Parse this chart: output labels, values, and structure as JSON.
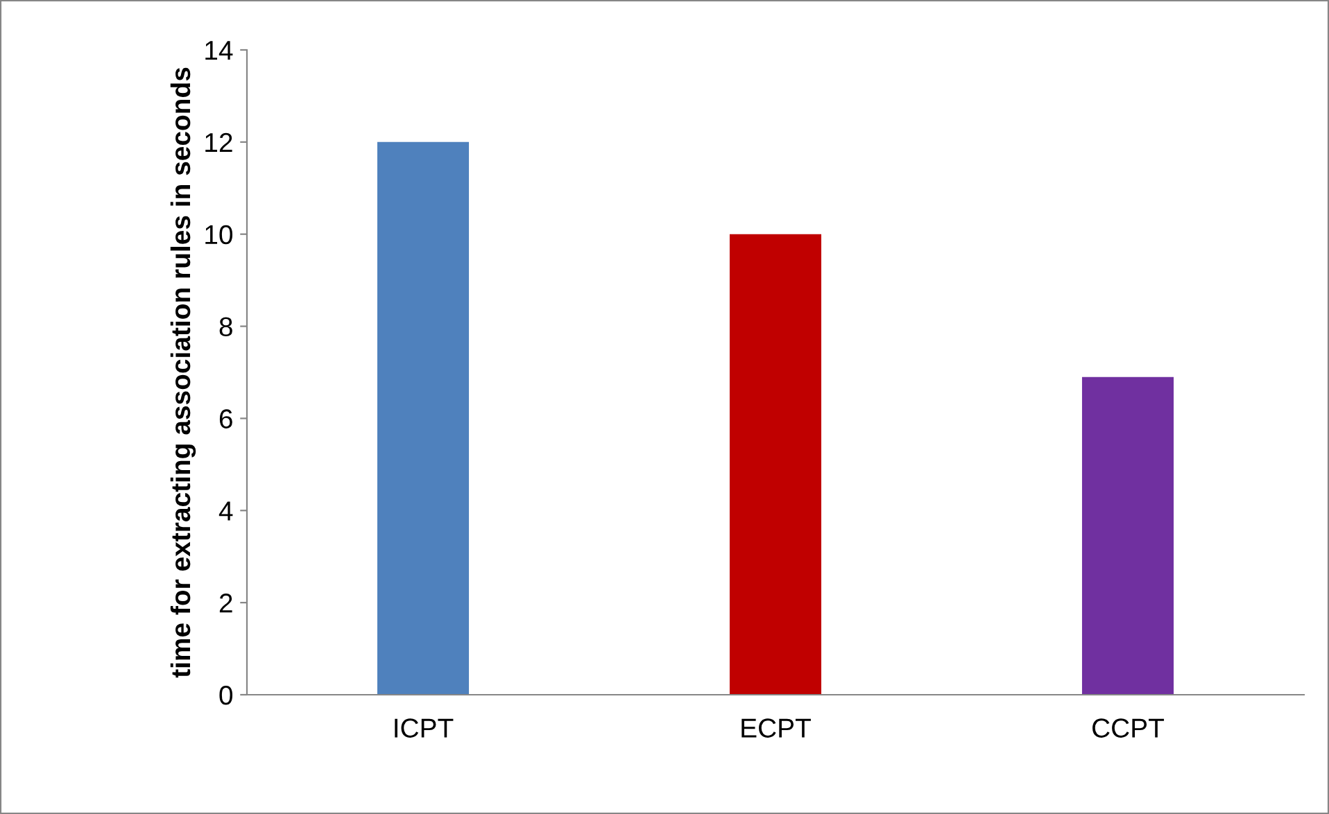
{
  "chart_data": {
    "type": "bar",
    "ylabel": "time for extracting association rules in seconds",
    "categories": [
      "ICPT",
      "ECPT",
      "CCPT"
    ],
    "values": [
      12.0,
      10.0,
      6.9
    ],
    "colors": [
      "#4f81bd",
      "#c00000",
      "#7030a0"
    ],
    "ylim": [
      0,
      14
    ],
    "yticks": [
      0,
      2,
      4,
      6,
      8,
      10,
      12,
      14
    ],
    "grid": false,
    "legend": false
  }
}
